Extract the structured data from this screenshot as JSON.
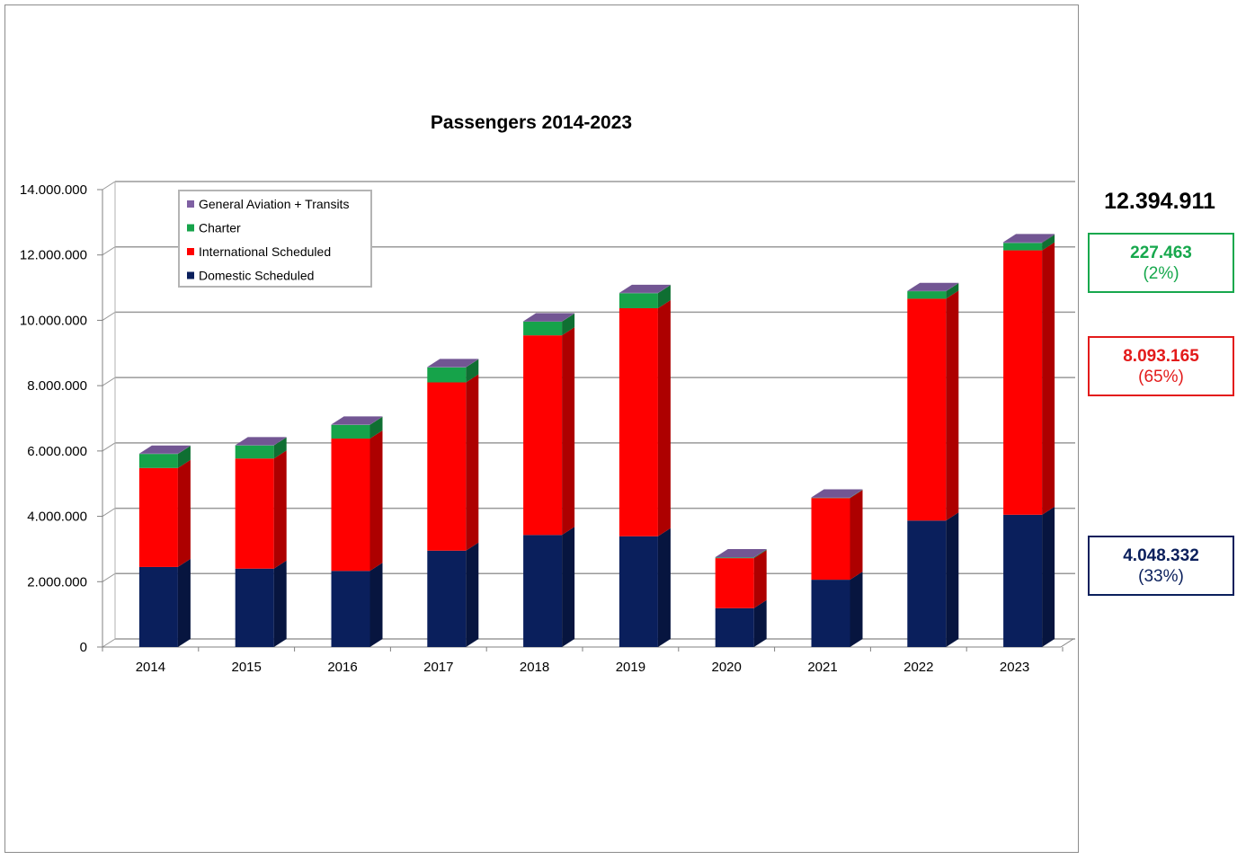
{
  "chart_data": {
    "type": "bar",
    "stacked": true,
    "three_d": true,
    "title": "Passengers 2014-2023",
    "xlabel": "",
    "ylabel": "",
    "categories": [
      "2014",
      "2015",
      "2016",
      "2017",
      "2018",
      "2019",
      "2020",
      "2021",
      "2022",
      "2023"
    ],
    "ylim": [
      0,
      14000000
    ],
    "yticks": [
      0,
      2000000,
      4000000,
      6000000,
      8000000,
      10000000,
      12000000,
      14000000
    ],
    "ytick_labels": [
      "0",
      "2.000.000",
      "4.000.000",
      "6.000.000",
      "8.000.000",
      "10.000.000",
      "12.000.000",
      "14.000.000"
    ],
    "grid": true,
    "legend_position": "top-left",
    "series": [
      {
        "name": "Domestic Scheduled",
        "color": "#0a1f5c",
        "values": [
          2450000,
          2400000,
          2330000,
          2950000,
          3430000,
          3390000,
          1190000,
          2060000,
          3870000,
          4048332
        ]
      },
      {
        "name": "International Scheduled",
        "color": "#ff0000",
        "values": [
          3030000,
          3370000,
          4050000,
          5150000,
          6110000,
          6980000,
          1530000,
          2500000,
          6790000,
          8093165
        ]
      },
      {
        "name": "Charter",
        "color": "#16a34a",
        "values": [
          430000,
          400000,
          420000,
          460000,
          420000,
          460000,
          20000,
          10000,
          230000,
          227463
        ]
      },
      {
        "name": "General Aviation + Transits",
        "color": "#7f60a3",
        "values": [
          10000,
          10000,
          10000,
          10000,
          10000,
          10000,
          10000,
          10000,
          10000,
          26000
        ]
      }
    ]
  },
  "summary": {
    "total": "12.394.911",
    "charter_value": "227.463",
    "charter_pct": "(2%)",
    "international_value": "8.093.165",
    "international_pct": "(65%)",
    "domestic_value": "4.048.332",
    "domestic_pct": "(33%)"
  }
}
